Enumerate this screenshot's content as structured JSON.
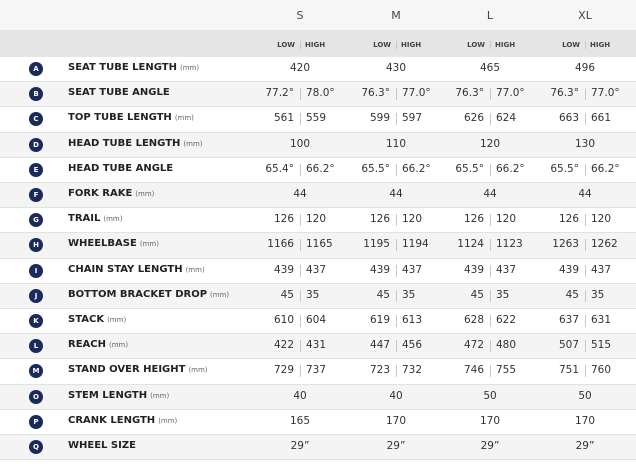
{
  "table": {
    "sizes": [
      "S",
      "M",
      "L",
      "XL"
    ],
    "subheader": {
      "low": "LOW",
      "high": "HIGH"
    },
    "rows": [
      {
        "letter": "A",
        "name": "SEAT TUBE LENGTH",
        "unit": "(mm)",
        "values": [
          [
            "420"
          ],
          [
            "430"
          ],
          [
            "465"
          ],
          [
            "496"
          ]
        ]
      },
      {
        "letter": "B",
        "name": "SEAT TUBE ANGLE",
        "values": [
          [
            "77.2°",
            "78.0°"
          ],
          [
            "76.3°",
            "77.0°"
          ],
          [
            "76.3°",
            "77.0°"
          ],
          [
            "76.3°",
            "77.0°"
          ]
        ]
      },
      {
        "letter": "C",
        "name": "TOP TUBE LENGTH",
        "unit": "(mm)",
        "values": [
          [
            "561",
            "559"
          ],
          [
            "599",
            "597"
          ],
          [
            "626",
            "624"
          ],
          [
            "663",
            "661"
          ]
        ]
      },
      {
        "letter": "D",
        "name": "HEAD TUBE LENGTH",
        "unit": "(mm)",
        "values": [
          [
            "100"
          ],
          [
            "110"
          ],
          [
            "120"
          ],
          [
            "130"
          ]
        ]
      },
      {
        "letter": "E",
        "name": "HEAD TUBE ANGLE",
        "values": [
          [
            "65.4°",
            "66.2°"
          ],
          [
            "65.5°",
            "66.2°"
          ],
          [
            "65.5°",
            "66.2°"
          ],
          [
            "65.5°",
            "66.2°"
          ]
        ]
      },
      {
        "letter": "F",
        "name": "FORK RAKE",
        "unit": "(mm)",
        "values": [
          [
            "44"
          ],
          [
            "44"
          ],
          [
            "44"
          ],
          [
            "44"
          ]
        ]
      },
      {
        "letter": "G",
        "name": "TRAIL",
        "unit": "(mm)",
        "values": [
          [
            "126",
            "120"
          ],
          [
            "126",
            "120"
          ],
          [
            "126",
            "120"
          ],
          [
            "126",
            "120"
          ]
        ]
      },
      {
        "letter": "H",
        "name": "WHEELBASE",
        "unit": "(mm)",
        "values": [
          [
            "1166",
            "1165"
          ],
          [
            "1195",
            "1194"
          ],
          [
            "1124",
            "1123"
          ],
          [
            "1263",
            "1262"
          ]
        ]
      },
      {
        "letter": "I",
        "name": "CHAIN STAY LENGTH",
        "unit": "(mm)",
        "values": [
          [
            "439",
            "437"
          ],
          [
            "439",
            "437"
          ],
          [
            "439",
            "437"
          ],
          [
            "439",
            "437"
          ]
        ]
      },
      {
        "letter": "J",
        "name": "BOTTOM BRACKET DROP",
        "unit": "(mm)",
        "values": [
          [
            "45",
            "35"
          ],
          [
            "45",
            "35"
          ],
          [
            "45",
            "35"
          ],
          [
            "45",
            "35"
          ]
        ]
      },
      {
        "letter": "K",
        "name": "STACK",
        "unit": "(mm)",
        "values": [
          [
            "610",
            "604"
          ],
          [
            "619",
            "613"
          ],
          [
            "628",
            "622"
          ],
          [
            "637",
            "631"
          ]
        ]
      },
      {
        "letter": "L",
        "name": "REACH",
        "unit": "(mm)",
        "values": [
          [
            "422",
            "431"
          ],
          [
            "447",
            "456"
          ],
          [
            "472",
            "480"
          ],
          [
            "507",
            "515"
          ]
        ]
      },
      {
        "letter": "M",
        "name": "STAND OVER HEIGHT",
        "unit": "(mm)",
        "values": [
          [
            "729",
            "737"
          ],
          [
            "723",
            "732"
          ],
          [
            "746",
            "755"
          ],
          [
            "751",
            "760"
          ]
        ]
      },
      {
        "letter": "O",
        "name": "STEM LENGTH",
        "unit": "(mm)",
        "values": [
          [
            "40"
          ],
          [
            "40"
          ],
          [
            "50"
          ],
          [
            "50"
          ]
        ]
      },
      {
        "letter": "P",
        "name": "CRANK LENGTH",
        "unit": "(mm)",
        "values": [
          [
            "165"
          ],
          [
            "170"
          ],
          [
            "170"
          ],
          [
            "170"
          ]
        ]
      },
      {
        "letter": "Q",
        "name": "WHEEL SIZE",
        "values": [
          [
            "29”"
          ],
          [
            "29”"
          ],
          [
            "29”"
          ],
          [
            "29”"
          ]
        ]
      }
    ]
  }
}
